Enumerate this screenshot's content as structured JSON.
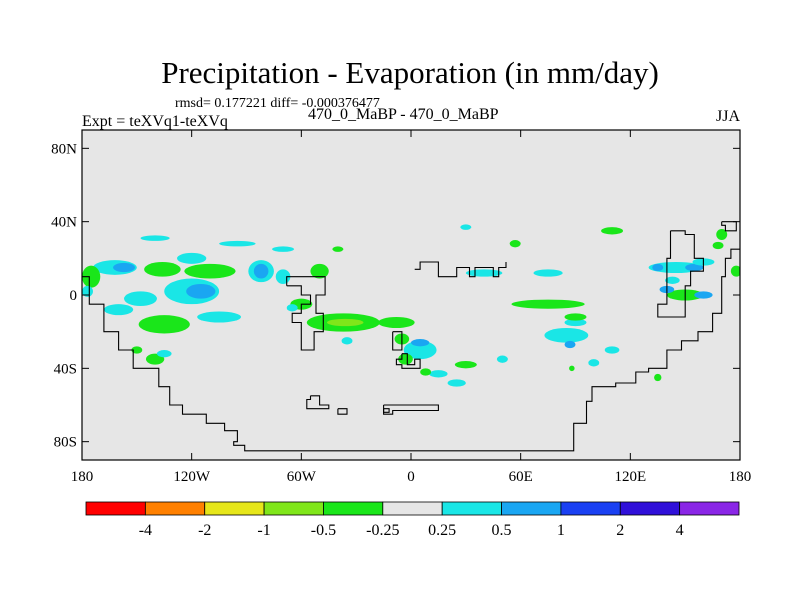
{
  "header": {
    "title": "Precipitation - Evaporation (in mm/day)",
    "stats": "rmsd= 0.177221 diff= -0.000376477",
    "left_label": "Expt = teXVq1-teXVq",
    "center_label": "470_0_MaBP - 470_0_MaBP",
    "right_label": "JJA"
  },
  "chart_data": {
    "type": "heatmap",
    "title": "Precipitation - Evaporation (in mm/day)",
    "subtitle": "470_0_MaBP - 470_0_MaBP",
    "xlabel": "",
    "ylabel": "",
    "xlim": [
      -180,
      180
    ],
    "ylim": [
      -90,
      90
    ],
    "x_ticks": [
      {
        "value": -180,
        "label": "180"
      },
      {
        "value": -120,
        "label": "120W"
      },
      {
        "value": -60,
        "label": "60W"
      },
      {
        "value": 0,
        "label": "0"
      },
      {
        "value": 60,
        "label": "60E"
      },
      {
        "value": 120,
        "label": "120E"
      },
      {
        "value": 180,
        "label": "180"
      }
    ],
    "y_ticks": [
      {
        "value": 80,
        "label": "80N"
      },
      {
        "value": 40,
        "label": "40N"
      },
      {
        "value": 0,
        "label": "0"
      },
      {
        "value": -40,
        "label": "40S"
      },
      {
        "value": -80,
        "label": "80S"
      }
    ],
    "background_color": "#e6e6e6",
    "colorbar": {
      "levels": [
        "-4",
        "-2",
        "-1",
        "-0.5",
        "-0.25",
        "0.25",
        "0.5",
        "1",
        "2",
        "4"
      ],
      "colors": [
        "#ff0000",
        "#ff8000",
        "#e6e61a",
        "#80e61a",
        "#1ae61a",
        "#e6e6e6",
        "#1ae6e6",
        "#1aa6f2",
        "#1a40f2",
        "#3010d9",
        "#8a26e6"
      ]
    },
    "regions": [
      {
        "lon": -162,
        "lat": 15,
        "rlon": 12,
        "rlat": 4,
        "color": "#1ae6e6"
      },
      {
        "lon": -157,
        "lat": 15,
        "rlon": 6,
        "rlat": 2.5,
        "color": "#1aa6f2"
      },
      {
        "lon": -175,
        "lat": 10,
        "rlon": 5,
        "rlat": 6,
        "color": "#1ae61a"
      },
      {
        "lon": -177,
        "lat": 2,
        "rlon": 3,
        "rlat": 3,
        "color": "#1ae6e6"
      },
      {
        "lon": -136,
        "lat": 14,
        "rlon": 10,
        "rlat": 4,
        "color": "#1ae61a"
      },
      {
        "lon": -120,
        "lat": 20,
        "rlon": 8,
        "rlat": 3,
        "color": "#1ae6e6"
      },
      {
        "lon": -110,
        "lat": 13,
        "rlon": 14,
        "rlat": 4,
        "color": "#1ae61a"
      },
      {
        "lon": -120,
        "lat": 2,
        "rlon": 15,
        "rlat": 7,
        "color": "#1ae6e6"
      },
      {
        "lon": -115,
        "lat": 2,
        "rlon": 8,
        "rlat": 4,
        "color": "#1aa6f2"
      },
      {
        "lon": -148,
        "lat": -2,
        "rlon": 9,
        "rlat": 4,
        "color": "#1ae6e6"
      },
      {
        "lon": -160,
        "lat": -8,
        "rlon": 8,
        "rlat": 3,
        "color": "#1ae6e6"
      },
      {
        "lon": -135,
        "lat": -16,
        "rlon": 14,
        "rlat": 5,
        "color": "#1ae61a"
      },
      {
        "lon": -105,
        "lat": -12,
        "rlon": 12,
        "rlat": 3,
        "color": "#1ae6e6"
      },
      {
        "lon": -82,
        "lat": 13,
        "rlon": 7,
        "rlat": 6,
        "color": "#1ae6e6"
      },
      {
        "lon": -82,
        "lat": 13,
        "rlon": 4,
        "rlat": 4,
        "color": "#1aa6f2"
      },
      {
        "lon": -70,
        "lat": 10,
        "rlon": 4,
        "rlat": 4,
        "color": "#1ae6e6"
      },
      {
        "lon": -50,
        "lat": 13,
        "rlon": 5,
        "rlat": 4,
        "color": "#1ae61a"
      },
      {
        "lon": -40,
        "lat": 25,
        "rlon": 3,
        "rlat": 1.5,
        "color": "#1ae61a"
      },
      {
        "lon": -70,
        "lat": 25,
        "rlon": 6,
        "rlat": 1.5,
        "color": "#1ae6e6"
      },
      {
        "lon": -95,
        "lat": 28,
        "rlon": 10,
        "rlat": 1.5,
        "color": "#1ae6e6"
      },
      {
        "lon": -140,
        "lat": 31,
        "rlon": 8,
        "rlat": 1.5,
        "color": "#1ae6e6"
      },
      {
        "lon": -60,
        "lat": -5,
        "rlon": 6,
        "rlat": 3,
        "color": "#1ae61a"
      },
      {
        "lon": -37,
        "lat": -15,
        "rlon": 20,
        "rlat": 5,
        "color": "#1ae61a"
      },
      {
        "lon": -36,
        "lat": -15,
        "rlon": 10,
        "rlat": 2,
        "color": "#80e61a"
      },
      {
        "lon": -8,
        "lat": -15,
        "rlon": 10,
        "rlat": 3,
        "color": "#1ae61a"
      },
      {
        "lon": -35,
        "lat": -25,
        "rlon": 3,
        "rlat": 2,
        "color": "#1ae6e6"
      },
      {
        "lon": -65,
        "lat": -7,
        "rlon": 3,
        "rlat": 2,
        "color": "#1ae6e6"
      },
      {
        "lon": 5,
        "lat": -30,
        "rlon": 9,
        "rlat": 5,
        "color": "#1ae6e6"
      },
      {
        "lon": 5,
        "lat": -26,
        "rlon": 5,
        "rlat": 2,
        "color": "#1aa6f2"
      },
      {
        "lon": -5,
        "lat": -24,
        "rlon": 4,
        "rlat": 3,
        "color": "#1ae61a"
      },
      {
        "lon": -3,
        "lat": -35,
        "rlon": 4,
        "rlat": 3,
        "color": "#1ae61a"
      },
      {
        "lon": 15,
        "lat": -43,
        "rlon": 5,
        "rlat": 2,
        "color": "#1ae6e6"
      },
      {
        "lon": 8,
        "lat": -42,
        "rlon": 3,
        "rlat": 2,
        "color": "#1ae61a"
      },
      {
        "lon": 30,
        "lat": -38,
        "rlon": 6,
        "rlat": 2,
        "color": "#1ae61a"
      },
      {
        "lon": 25,
        "lat": -48,
        "rlon": 5,
        "rlat": 2,
        "color": "#1ae6e6"
      },
      {
        "lon": 50,
        "lat": -35,
        "rlon": 3,
        "rlat": 2,
        "color": "#1ae6e6"
      },
      {
        "lon": 100,
        "lat": -37,
        "rlon": 3,
        "rlat": 2,
        "color": "#1ae6e6"
      },
      {
        "lon": 110,
        "lat": -30,
        "rlon": 4,
        "rlat": 2,
        "color": "#1ae6e6"
      },
      {
        "lon": 85,
        "lat": -22,
        "rlon": 12,
        "rlat": 4,
        "color": "#1ae6e6"
      },
      {
        "lon": 87,
        "lat": -27,
        "rlon": 3,
        "rlat": 2,
        "color": "#1aa6f2"
      },
      {
        "lon": 90,
        "lat": -15,
        "rlon": 6,
        "rlat": 2,
        "color": "#1ae6e6"
      },
      {
        "lon": 90,
        "lat": -12,
        "rlon": 6,
        "rlat": 2,
        "color": "#1ae61a"
      },
      {
        "lon": 75,
        "lat": -5,
        "rlon": 20,
        "rlat": 2.5,
        "color": "#1ae61a"
      },
      {
        "lon": 145,
        "lat": 15,
        "rlon": 15,
        "rlat": 3,
        "color": "#1ae6e6"
      },
      {
        "lon": 155,
        "lat": 15,
        "rlon": 5,
        "rlat": 2,
        "color": "#1aa6f2"
      },
      {
        "lon": 160,
        "lat": 18,
        "rlon": 6,
        "rlat": 2,
        "color": "#1ae6e6"
      },
      {
        "lon": 135,
        "lat": 15,
        "rlon": 3,
        "rlat": 2,
        "color": "#1aa6f2"
      },
      {
        "lon": 150,
        "lat": 0,
        "rlon": 10,
        "rlat": 3,
        "color": "#1ae61a"
      },
      {
        "lon": 160,
        "lat": 0,
        "rlon": 5,
        "rlat": 2,
        "color": "#1aa6f2"
      },
      {
        "lon": 140,
        "lat": 3,
        "rlon": 4,
        "rlat": 2,
        "color": "#1aa6f2"
      },
      {
        "lon": 143,
        "lat": 8,
        "rlon": 4,
        "rlat": 2,
        "color": "#1ae6e6"
      },
      {
        "lon": 178,
        "lat": 13,
        "rlon": 3,
        "rlat": 3,
        "color": "#1ae61a"
      },
      {
        "lon": 170,
        "lat": 33,
        "rlon": 3,
        "rlat": 3,
        "color": "#1ae61a"
      },
      {
        "lon": 168,
        "lat": 27,
        "rlon": 3,
        "rlat": 2,
        "color": "#1ae61a"
      },
      {
        "lon": 110,
        "lat": 35,
        "rlon": 6,
        "rlat": 2,
        "color": "#1ae61a"
      },
      {
        "lon": 57,
        "lat": 28,
        "rlon": 3,
        "rlat": 2,
        "color": "#1ae61a"
      },
      {
        "lon": 30,
        "lat": 37,
        "rlon": 3,
        "rlat": 1.5,
        "color": "#1ae6e6"
      },
      {
        "lon": 75,
        "lat": 12,
        "rlon": 8,
        "rlat": 2,
        "color": "#1ae6e6"
      },
      {
        "lon": 40,
        "lat": 12,
        "rlon": 10,
        "rlat": 2,
        "color": "#1ae6e6"
      },
      {
        "lon": 135,
        "lat": -45,
        "rlon": 2,
        "rlat": 2,
        "color": "#1ae61a"
      },
      {
        "lon": 88,
        "lat": -40,
        "rlon": 1.5,
        "rlat": 1.5,
        "color": "#1ae61a"
      },
      {
        "lon": -140,
        "lat": -35,
        "rlon": 5,
        "rlat": 3,
        "color": "#1ae61a"
      },
      {
        "lon": -150,
        "lat": -30,
        "rlon": 3,
        "rlat": 2,
        "color": "#1ae61a"
      },
      {
        "lon": -135,
        "lat": -32,
        "rlon": 4,
        "rlat": 2,
        "color": "#1ae6e6"
      }
    ],
    "coastlines": [
      [
        [
          -180,
          10
        ],
        [
          -176,
          10
        ],
        [
          -176,
          -5
        ],
        [
          -168,
          -5
        ],
        [
          -168,
          -20
        ],
        [
          -160,
          -20
        ],
        [
          -160,
          -30
        ],
        [
          -152,
          -30
        ],
        [
          -152,
          -40
        ],
        [
          -138,
          -40
        ],
        [
          -138,
          -50
        ],
        [
          -132,
          -50
        ],
        [
          -132,
          -60
        ],
        [
          -125,
          -60
        ],
        [
          -125,
          -65
        ],
        [
          -112,
          -65
        ],
        [
          -112,
          -70
        ],
        [
          -102,
          -70
        ],
        [
          -102,
          -74
        ],
        [
          -95,
          -74
        ],
        [
          -95,
          -80
        ],
        [
          -97,
          -80
        ],
        [
          -97,
          -82
        ],
        [
          -91,
          -82
        ],
        [
          -91,
          -85
        ],
        [
          -58,
          -85
        ],
        [
          -15,
          -85
        ],
        [
          30,
          -85
        ],
        [
          70,
          -85
        ],
        [
          89,
          -85
        ],
        [
          89,
          -70
        ],
        [
          96,
          -70
        ],
        [
          96,
          -58
        ],
        [
          99,
          -58
        ],
        [
          99,
          -50
        ],
        [
          112,
          -50
        ],
        [
          112,
          -48
        ],
        [
          123,
          -48
        ],
        [
          123,
          -42
        ],
        [
          130,
          -42
        ],
        [
          130,
          -40
        ],
        [
          140,
          -40
        ],
        [
          140,
          -30
        ],
        [
          148,
          -30
        ],
        [
          148,
          -25
        ],
        [
          157,
          -25
        ],
        [
          157,
          -20
        ],
        [
          165,
          -20
        ],
        [
          165,
          -10
        ],
        [
          170,
          -10
        ],
        [
          170,
          10
        ],
        [
          172,
          10
        ],
        [
          172,
          20
        ],
        [
          175,
          20
        ],
        [
          175,
          25
        ],
        [
          180,
          25
        ]
      ],
      [
        [
          -68,
          5
        ],
        [
          -60,
          5
        ],
        [
          -60,
          0
        ],
        [
          -55,
          0
        ],
        [
          -55,
          -5
        ],
        [
          -60,
          -5
        ],
        [
          -60,
          -10
        ],
        [
          -65,
          -10
        ],
        [
          -65,
          -15
        ],
        [
          -60,
          -15
        ],
        [
          -60,
          -30
        ],
        [
          -53,
          -30
        ],
        [
          -53,
          -20
        ],
        [
          -48,
          -20
        ],
        [
          -48,
          -10
        ],
        [
          -52,
          -10
        ],
        [
          -52,
          0
        ],
        [
          -47,
          0
        ],
        [
          -47,
          10
        ],
        [
          -65,
          10
        ],
        [
          -68,
          10
        ],
        [
          -68,
          5
        ]
      ],
      [
        [
          -55,
          -55
        ],
        [
          -50,
          -55
        ],
        [
          -50,
          -60
        ],
        [
          -45,
          -60
        ],
        [
          -45,
          -62
        ],
        [
          -57,
          -62
        ],
        [
          -57,
          -57
        ],
        [
          -55,
          -57
        ],
        [
          -55,
          -55
        ]
      ],
      [
        [
          -40,
          -62
        ],
        [
          -35,
          -62
        ],
        [
          -35,
          -65
        ],
        [
          -40,
          -65
        ],
        [
          -40,
          -62
        ]
      ],
      [
        [
          2,
          14
        ],
        [
          5,
          14
        ],
        [
          5,
          18
        ],
        [
          15,
          18
        ],
        [
          15,
          10
        ],
        [
          25,
          10
        ],
        [
          25,
          15
        ],
        [
          32,
          15
        ],
        [
          32,
          10
        ],
        [
          35,
          10
        ],
        [
          35,
          15
        ],
        [
          45,
          15
        ],
        [
          45,
          10
        ],
        [
          48,
          10
        ],
        [
          48,
          15
        ],
        [
          52,
          15
        ],
        [
          52,
          18
        ]
      ],
      [
        [
          -5,
          -32
        ],
        [
          -2,
          -32
        ],
        [
          -2,
          -38
        ],
        [
          2,
          -38
        ],
        [
          2,
          -35
        ],
        [
          5,
          -35
        ],
        [
          5,
          -40
        ],
        [
          -5,
          -40
        ],
        [
          -5,
          -38
        ],
        [
          -8,
          -38
        ],
        [
          -8,
          -35
        ],
        [
          -5,
          -35
        ],
        [
          -5,
          -32
        ]
      ],
      [
        [
          -10,
          -20
        ],
        [
          -5,
          -20
        ],
        [
          -5,
          -30
        ],
        [
          -10,
          -30
        ],
        [
          -10,
          -20
        ]
      ],
      [
        [
          -15,
          -60
        ],
        [
          0,
          -60
        ],
        [
          15,
          -60
        ],
        [
          15,
          -63
        ],
        [
          -10,
          -63
        ],
        [
          -10,
          -65
        ],
        [
          -15,
          -65
        ],
        [
          -15,
          -60
        ]
      ],
      [
        [
          -15,
          -62
        ],
        [
          -12,
          -62
        ],
        [
          -12,
          -64
        ],
        [
          -15,
          -64
        ],
        [
          -15,
          -62
        ]
      ],
      [
        [
          142,
          35
        ],
        [
          150,
          35
        ],
        [
          150,
          33
        ],
        [
          155,
          33
        ],
        [
          155,
          20
        ],
        [
          160,
          20
        ],
        [
          160,
          13
        ],
        [
          153,
          13
        ],
        [
          153,
          5
        ],
        [
          150,
          5
        ],
        [
          150,
          -12
        ],
        [
          135,
          -12
        ],
        [
          135,
          -5
        ],
        [
          140,
          -5
        ],
        [
          140,
          20
        ],
        [
          142,
          20
        ],
        [
          142,
          35
        ]
      ],
      [
        [
          170,
          40
        ],
        [
          178,
          40
        ],
        [
          178,
          35
        ],
        [
          172,
          35
        ],
        [
          172,
          38
        ],
        [
          170,
          38
        ],
        [
          170,
          40
        ]
      ]
    ]
  }
}
